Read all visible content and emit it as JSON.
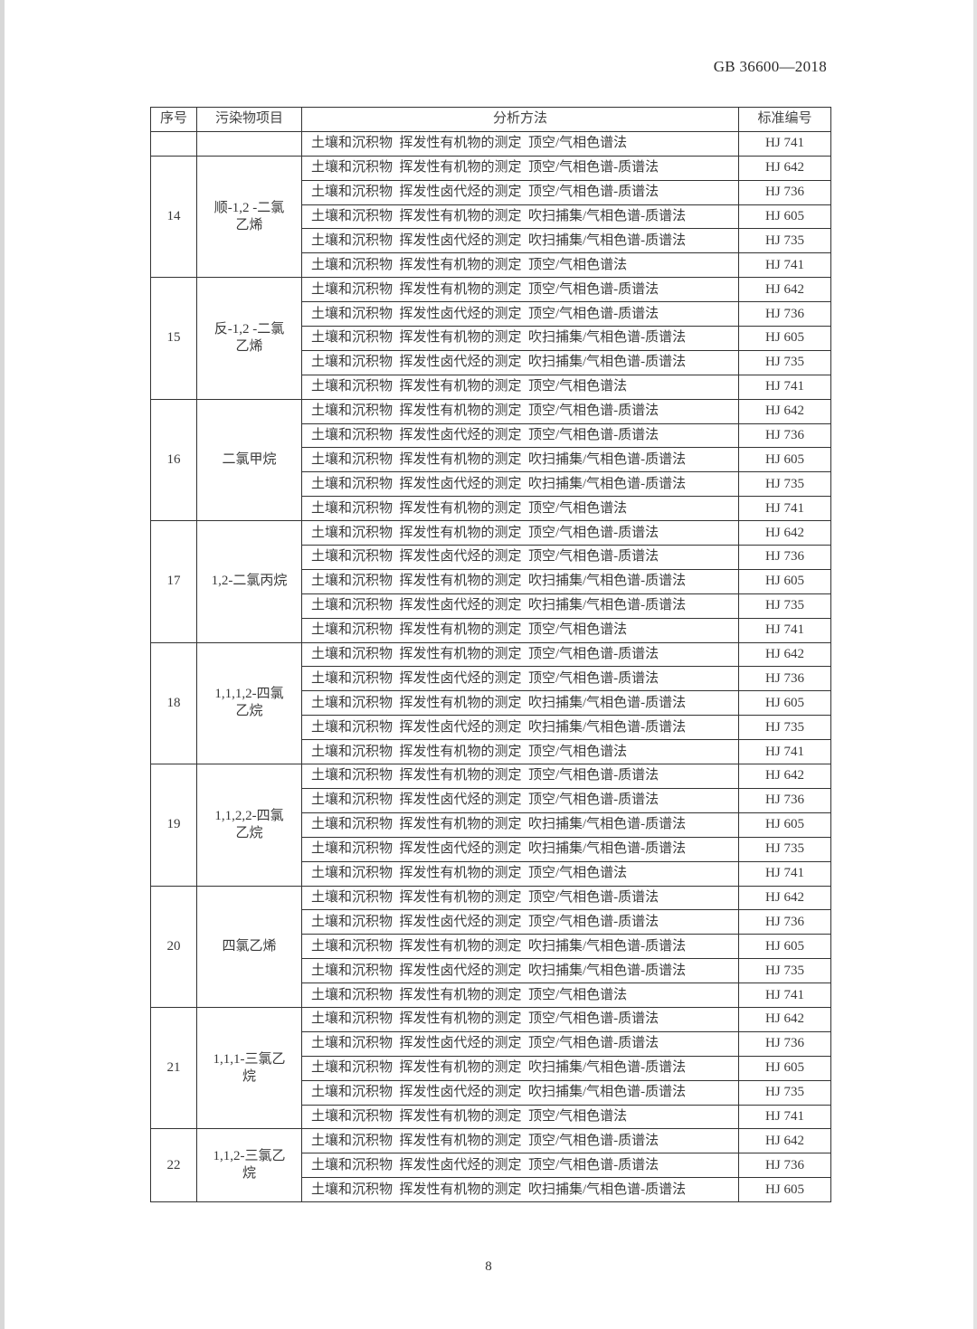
{
  "header": {
    "doc_id": "GB 36600—2018"
  },
  "table": {
    "columns": [
      "序号",
      "污染物项目",
      "分析方法",
      "标准编号"
    ],
    "continued_rows": [
      {
        "method": "土壤和沉积物  挥发性有机物的测定  顶空/气相色谱法",
        "standard": "HJ 741"
      }
    ],
    "groups": [
      {
        "no": "14",
        "name_lines": [
          "顺-1,2 -二氯",
          "乙烯"
        ],
        "rows": [
          {
            "method": "土壤和沉积物  挥发性有机物的测定  顶空/气相色谱-质谱法",
            "standard": "HJ 642"
          },
          {
            "method": "土壤和沉积物  挥发性卤代烃的测定  顶空/气相色谱-质谱法",
            "standard": "HJ 736"
          },
          {
            "method": "土壤和沉积物  挥发性有机物的测定  吹扫捕集/气相色谱-质谱法",
            "standard": "HJ 605"
          },
          {
            "method": "土壤和沉积物  挥发性卤代烃的测定  吹扫捕集/气相色谱-质谱法",
            "standard": "HJ 735"
          },
          {
            "method": "土壤和沉积物  挥发性有机物的测定  顶空/气相色谱法",
            "standard": "HJ 741"
          }
        ]
      },
      {
        "no": "15",
        "name_lines": [
          "反-1,2 -二氯",
          "乙烯"
        ],
        "rows": [
          {
            "method": "土壤和沉积物  挥发性有机物的测定  顶空/气相色谱-质谱法",
            "standard": "HJ 642"
          },
          {
            "method": "土壤和沉积物  挥发性卤代烃的测定  顶空/气相色谱-质谱法",
            "standard": "HJ 736"
          },
          {
            "method": "土壤和沉积物  挥发性有机物的测定  吹扫捕集/气相色谱-质谱法",
            "standard": "HJ 605"
          },
          {
            "method": "土壤和沉积物  挥发性卤代烃的测定  吹扫捕集/气相色谱-质谱法",
            "standard": "HJ 735"
          },
          {
            "method": "土壤和沉积物  挥发性有机物的测定  顶空/气相色谱法",
            "standard": "HJ 741"
          }
        ]
      },
      {
        "no": "16",
        "name_lines": [
          "二氯甲烷"
        ],
        "rows": [
          {
            "method": "土壤和沉积物  挥发性有机物的测定  顶空/气相色谱-质谱法",
            "standard": "HJ 642"
          },
          {
            "method": "土壤和沉积物  挥发性卤代烃的测定  顶空/气相色谱-质谱法",
            "standard": "HJ 736"
          },
          {
            "method": "土壤和沉积物  挥发性有机物的测定  吹扫捕集/气相色谱-质谱法",
            "standard": "HJ 605"
          },
          {
            "method": "土壤和沉积物  挥发性卤代烃的测定  吹扫捕集/气相色谱-质谱法",
            "standard": "HJ 735"
          },
          {
            "method": "土壤和沉积物  挥发性有机物的测定  顶空/气相色谱法",
            "standard": "HJ 741"
          }
        ]
      },
      {
        "no": "17",
        "name_lines": [
          "1,2-二氯丙烷"
        ],
        "rows": [
          {
            "method": "土壤和沉积物  挥发性有机物的测定  顶空/气相色谱-质谱法",
            "standard": "HJ 642"
          },
          {
            "method": "土壤和沉积物  挥发性卤代烃的测定  顶空/气相色谱-质谱法",
            "standard": "HJ 736"
          },
          {
            "method": "土壤和沉积物  挥发性有机物的测定  吹扫捕集/气相色谱-质谱法",
            "standard": "HJ 605"
          },
          {
            "method": "土壤和沉积物  挥发性卤代烃的测定  吹扫捕集/气相色谱-质谱法",
            "standard": "HJ 735"
          },
          {
            "method": "土壤和沉积物  挥发性有机物的测定  顶空/气相色谱法",
            "standard": "HJ 741"
          }
        ]
      },
      {
        "no": "18",
        "name_lines": [
          "1,1,1,2-四氯",
          "乙烷"
        ],
        "rows": [
          {
            "method": "土壤和沉积物  挥发性有机物的测定  顶空/气相色谱-质谱法",
            "standard": "HJ 642"
          },
          {
            "method": "土壤和沉积物  挥发性卤代烃的测定  顶空/气相色谱-质谱法",
            "standard": "HJ 736"
          },
          {
            "method": "土壤和沉积物  挥发性有机物的测定  吹扫捕集/气相色谱-质谱法",
            "standard": "HJ 605"
          },
          {
            "method": "土壤和沉积物  挥发性卤代烃的测定  吹扫捕集/气相色谱-质谱法",
            "standard": "HJ 735"
          },
          {
            "method": "土壤和沉积物  挥发性有机物的测定  顶空/气相色谱法",
            "standard": "HJ 741"
          }
        ]
      },
      {
        "no": "19",
        "name_lines": [
          "1,1,2,2-四氯",
          "乙烷"
        ],
        "rows": [
          {
            "method": "土壤和沉积物  挥发性有机物的测定  顶空/气相色谱-质谱法",
            "standard": "HJ 642"
          },
          {
            "method": "土壤和沉积物  挥发性卤代烃的测定  顶空/气相色谱-质谱法",
            "standard": "HJ 736"
          },
          {
            "method": "土壤和沉积物  挥发性有机物的测定  吹扫捕集/气相色谱-质谱法",
            "standard": "HJ 605"
          },
          {
            "method": "土壤和沉积物  挥发性卤代烃的测定  吹扫捕集/气相色谱-质谱法",
            "standard": "HJ 735"
          },
          {
            "method": "土壤和沉积物  挥发性有机物的测定  顶空/气相色谱法",
            "standard": "HJ 741"
          }
        ]
      },
      {
        "no": "20",
        "name_lines": [
          "四氯乙烯"
        ],
        "rows": [
          {
            "method": "土壤和沉积物  挥发性有机物的测定  顶空/气相色谱-质谱法",
            "standard": "HJ 642"
          },
          {
            "method": "土壤和沉积物  挥发性卤代烃的测定  顶空/气相色谱-质谱法",
            "standard": "HJ 736"
          },
          {
            "method": "土壤和沉积物  挥发性有机物的测定  吹扫捕集/气相色谱-质谱法",
            "standard": "HJ 605"
          },
          {
            "method": "土壤和沉积物  挥发性卤代烃的测定  吹扫捕集/气相色谱-质谱法",
            "standard": "HJ 735"
          },
          {
            "method": "土壤和沉积物  挥发性有机物的测定  顶空/气相色谱法",
            "standard": "HJ 741"
          }
        ]
      },
      {
        "no": "21",
        "name_lines": [
          "1,1,1-三氯乙",
          "烷"
        ],
        "rows": [
          {
            "method": "土壤和沉积物  挥发性有机物的测定  顶空/气相色谱-质谱法",
            "standard": "HJ 642"
          },
          {
            "method": "土壤和沉积物  挥发性卤代烃的测定  顶空/气相色谱-质谱法",
            "standard": "HJ 736"
          },
          {
            "method": "土壤和沉积物  挥发性有机物的测定  吹扫捕集/气相色谱-质谱法",
            "standard": "HJ 605"
          },
          {
            "method": "土壤和沉积物  挥发性卤代烃的测定  吹扫捕集/气相色谱-质谱法",
            "standard": "HJ 735"
          },
          {
            "method": "土壤和沉积物  挥发性有机物的测定  顶空/气相色谱法",
            "standard": "HJ 741"
          }
        ]
      },
      {
        "no": "22",
        "name_lines": [
          "1,1,2-三氯乙",
          "烷"
        ],
        "rows": [
          {
            "method": "土壤和沉积物  挥发性有机物的测定  顶空/气相色谱-质谱法",
            "standard": "HJ 642"
          },
          {
            "method": "土壤和沉积物  挥发性卤代烃的测定  顶空/气相色谱-质谱法",
            "standard": "HJ 736"
          },
          {
            "method": "土壤和沉积物  挥发性有机物的测定  吹扫捕集/气相色谱-质谱法",
            "standard": "HJ 605"
          }
        ]
      }
    ]
  },
  "footer": {
    "page_number": "8"
  }
}
